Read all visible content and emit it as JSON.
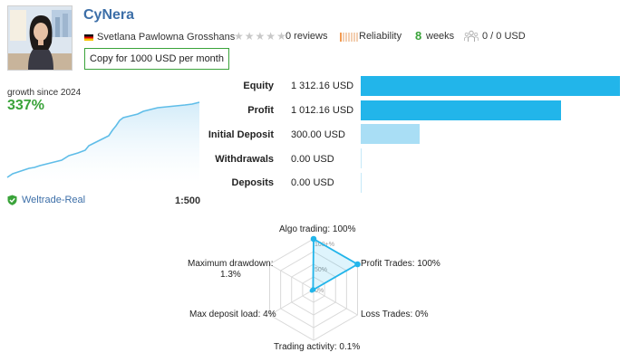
{
  "header": {
    "title": "CyNera",
    "author": "Svetlana Pawlowna Grosshans",
    "reviews": "0 reviews",
    "reliability_label": "Reliability",
    "weeks_number": "8",
    "weeks_label": "weeks",
    "subscribers": "0 / 0 USD",
    "copy_button": "Copy for 1000 USD per month"
  },
  "growth": {
    "label": "growth since 2024",
    "value": "337%"
  },
  "account": {
    "broker": "Weltrade-Real",
    "leverage": "1:500"
  },
  "financials": [
    {
      "label": "Equity",
      "value": "1 312.16 USD",
      "amount": 1312.16
    },
    {
      "label": "Profit",
      "value": "1 012.16 USD",
      "amount": 1012.16
    },
    {
      "label": "Initial Deposit",
      "value": "300.00 USD",
      "amount": 300.0
    },
    {
      "label": "Withdrawals",
      "value": "0.00 USD",
      "amount": 0
    },
    {
      "label": "Deposits",
      "value": "0.00 USD",
      "amount": 0
    }
  ],
  "radar": {
    "ticks": [
      "100+%",
      "50%",
      "0%"
    ],
    "axes": [
      {
        "label": "Algo trading: 100%",
        "value": 100
      },
      {
        "label": "Profit Trades: 100%",
        "value": 100
      },
      {
        "label": "Loss Trades: 0%",
        "value": 0
      },
      {
        "label": "Trading activity: 0.1%",
        "value": 0.1
      },
      {
        "label": "Max deposit load: 4%",
        "value": 4
      },
      {
        "label": "Maximum drawdown:",
        "label2": "1.3%",
        "value": 1.3
      }
    ]
  },
  "colors": {
    "accent_blue": "#22b5ea",
    "green": "#3aa33a",
    "link_blue": "#3d6fa8"
  }
}
